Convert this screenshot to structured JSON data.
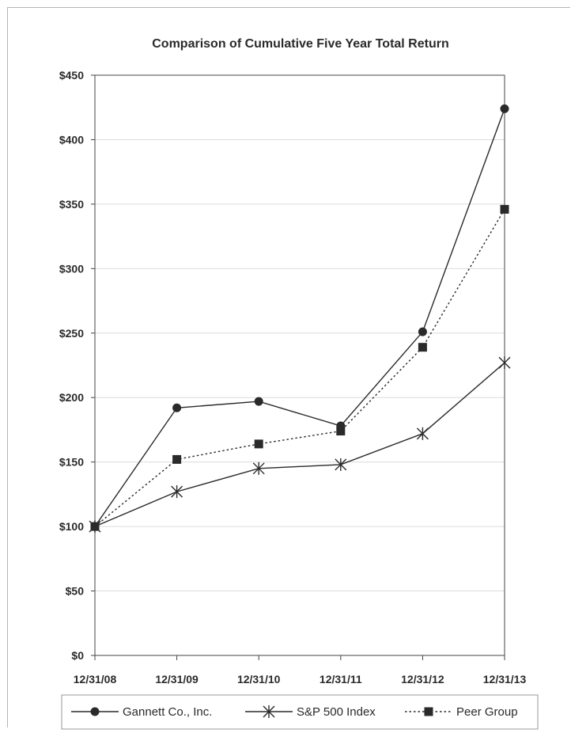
{
  "chart_data": {
    "type": "line",
    "title": "Comparison of Cumulative Five Year Total Return",
    "categories": [
      "12/31/08",
      "12/31/09",
      "12/31/10",
      "12/31/11",
      "12/31/12",
      "12/31/13"
    ],
    "y_ticks": [
      "$0",
      "$50",
      "$100",
      "$150",
      "$200",
      "$250",
      "$300",
      "$350",
      "$400",
      "$450"
    ],
    "ylim": [
      0,
      450
    ],
    "grid": true,
    "legend_position": "bottom",
    "series": [
      {
        "name": "Gannett Co., Inc.",
        "values": [
          100,
          192,
          197,
          178,
          251,
          424
        ],
        "marker": "circle",
        "line": "solid",
        "color": "#2a2a2a"
      },
      {
        "name": "S&P 500 Index",
        "values": [
          100,
          127,
          145,
          148,
          172,
          227
        ],
        "marker": "asterisk",
        "line": "solid",
        "color": "#2a2a2a"
      },
      {
        "name": "Peer Group",
        "values": [
          100,
          152,
          164,
          174,
          239,
          346
        ],
        "marker": "square",
        "line": "dotted",
        "color": "#2a2a2a"
      }
    ]
  }
}
